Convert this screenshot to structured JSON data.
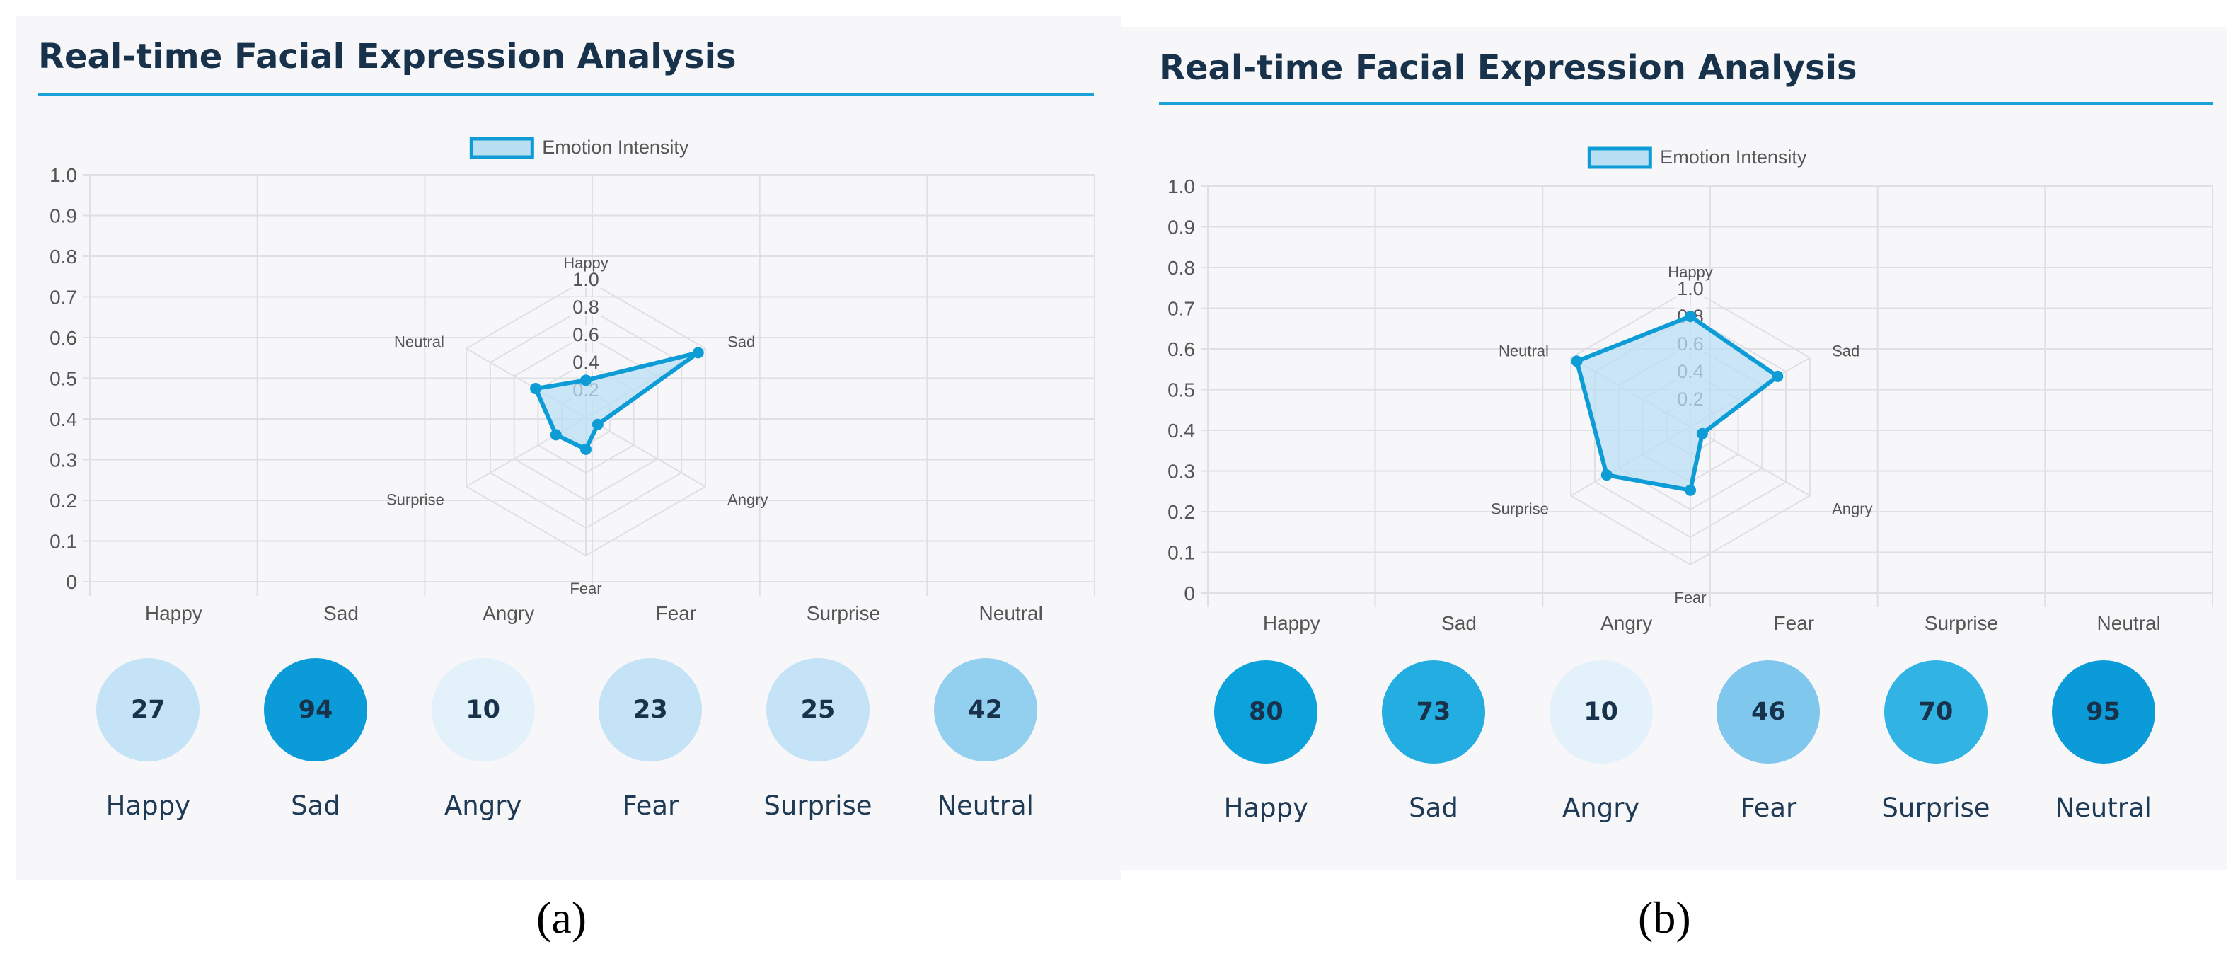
{
  "panels": [
    {
      "id": "a",
      "title": "Real-time Facial Expression Analysis",
      "caption": "(a)",
      "emotions": [
        {
          "label": "Happy",
          "value": 27,
          "color": "#c4e3f6"
        },
        {
          "label": "Sad",
          "value": 94,
          "color": "#0b9bd9"
        },
        {
          "label": "Angry",
          "value": 10,
          "color": "#e3f1fb"
        },
        {
          "label": "Fear",
          "value": 23,
          "color": "#c4e3f6"
        },
        {
          "label": "Surprise",
          "value": 25,
          "color": "#c4e3f6"
        },
        {
          "label": "Neutral",
          "value": 42,
          "color": "#93cfee"
        }
      ]
    },
    {
      "id": "b",
      "title": "Real-time Facial Expression Analysis",
      "caption": "(b)",
      "emotions": [
        {
          "label": "Happy",
          "value": 80,
          "color": "#0ca2dc"
        },
        {
          "label": "Sad",
          "value": 73,
          "color": "#23ade0"
        },
        {
          "label": "Angry",
          "value": 10,
          "color": "#e3f1fb"
        },
        {
          "label": "Fear",
          "value": 46,
          "color": "#7fc7ec"
        },
        {
          "label": "Surprise",
          "value": 70,
          "color": "#31b3e4"
        },
        {
          "label": "Neutral",
          "value": 95,
          "color": "#0b9bd9"
        }
      ]
    }
  ],
  "chart_data": [
    {
      "type": "radar",
      "title": "Real-time Facial Expression Analysis",
      "legend": "Emotion Intensity",
      "categories": [
        "Happy",
        "Sad",
        "Angry",
        "Fear",
        "Surprise",
        "Neutral"
      ],
      "values": [
        0.27,
        0.94,
        0.1,
        0.23,
        0.25,
        0.42
      ],
      "y_ticks": [
        "0",
        "0.1",
        "0.2",
        "0.3",
        "0.4",
        "0.5",
        "0.6",
        "0.7",
        "0.8",
        "0.9",
        "1.0"
      ],
      "radial_ticks": [
        "0.2",
        "0.4",
        "0.6",
        "0.8",
        "1.0"
      ],
      "ylim": [
        0,
        1
      ],
      "rlim": [
        0,
        1
      ],
      "colors": {
        "line": "#0e9cd7",
        "fill": "#b9dff4",
        "grid": "#dfdfe4"
      }
    },
    {
      "type": "radar",
      "title": "Real-time Facial Expression Analysis",
      "legend": "Emotion Intensity",
      "categories": [
        "Happy",
        "Sad",
        "Angry",
        "Fear",
        "Surprise",
        "Neutral"
      ],
      "values": [
        0.8,
        0.73,
        0.1,
        0.46,
        0.7,
        0.95
      ],
      "y_ticks": [
        "0",
        "0.1",
        "0.2",
        "0.3",
        "0.4",
        "0.5",
        "0.6",
        "0.7",
        "0.8",
        "0.9",
        "1.0"
      ],
      "radial_ticks": [
        "0.2",
        "0.4",
        "0.6",
        "0.8",
        "1.0"
      ],
      "ylim": [
        0,
        1
      ],
      "rlim": [
        0,
        1
      ],
      "colors": {
        "line": "#0e9cd7",
        "fill": "#b9dff4",
        "grid": "#dfdfe4"
      }
    }
  ]
}
